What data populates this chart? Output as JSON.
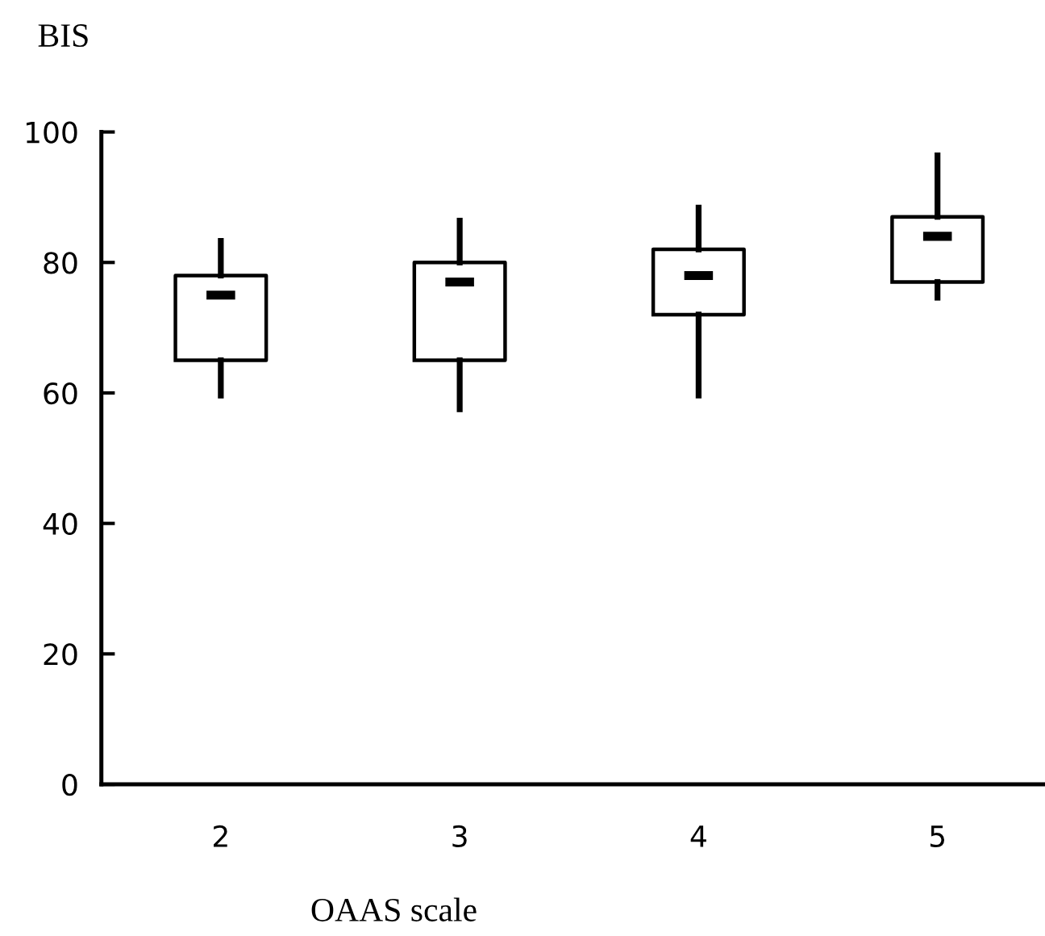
{
  "chart_data": {
    "type": "box",
    "xlabel": "OAAS scale",
    "ylabel": "BIS",
    "categories": [
      "2",
      "3",
      "4",
      "5"
    ],
    "boxes": [
      {
        "low": 59.6,
        "q1": 65,
        "median": 75,
        "q3": 78,
        "high": 83.3
      },
      {
        "low": 57.5,
        "q1": 65,
        "median": 77,
        "q3": 80,
        "high": 86.4
      },
      {
        "low": 59.6,
        "q1": 72,
        "median": 78,
        "q3": 82,
        "high": 88.4
      },
      {
        "low": 74.6,
        "q1": 77,
        "median": 84,
        "q3": 87,
        "high": 96.4
      }
    ],
    "color": "#000000",
    "ylim": [
      0,
      100
    ],
    "yticks": [
      0,
      20,
      40,
      60,
      80,
      100
    ],
    "grid": false
  }
}
